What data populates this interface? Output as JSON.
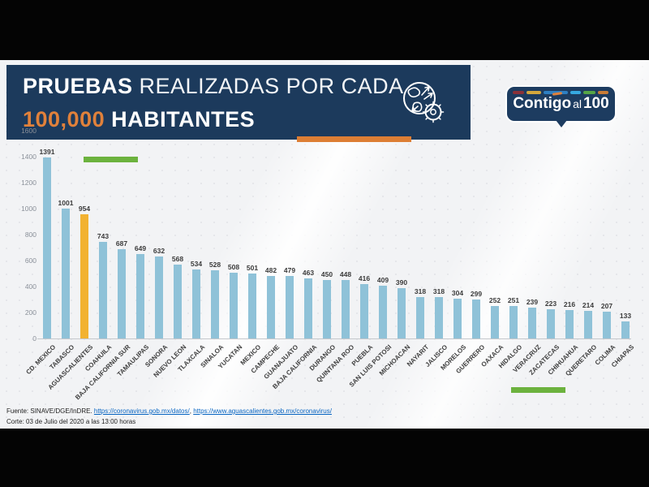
{
  "header": {
    "title_bold": "PRUEBAS",
    "title_rest": " REALIZADAS POR CADA",
    "title_highlight": "100,000",
    "title_end": " HABITANTES",
    "navy": "#1C3A5C"
  },
  "logo": {
    "word1": "Contigo",
    "word2": "al",
    "word3": "100",
    "stripes": [
      {
        "color": "#8B3138",
        "width": 14
      },
      {
        "color": "#D4A73C",
        "width": 18
      },
      {
        "color": "#2E7FC2",
        "width": 30
      },
      {
        "color": "#36A9E0",
        "width": 13
      },
      {
        "color": "#56A546",
        "width": 15
      },
      {
        "color": "#C97C36",
        "width": 13
      }
    ]
  },
  "accents": {
    "orange_underline": "#DD7E34",
    "green_bar": "#6CB23E"
  },
  "chart_data": {
    "type": "bar",
    "title": "PRUEBAS REALIZADAS POR CADA 100,000 HABITANTES",
    "categories": [
      "CD. MEXICO",
      "TABASCO",
      "AGUASCALIENTES",
      "COAHUILA",
      "BAJA CALIFORNIA SUR",
      "TAMAULIPAS",
      "SONORA",
      "NUEVO LEON",
      "TLAXCALA",
      "SINALOA",
      "YUCATAN",
      "MEXICO",
      "CAMPECHE",
      "GUANAJUATO",
      "BAJA CALIFORNIA",
      "DURANGO",
      "QUINTANA ROO",
      "PUEBLA",
      "SAN LUIS POTOSI",
      "MICHOACAN",
      "NAYARIT",
      "JALISCO",
      "MORELOS",
      "GUERRERO",
      "OAXACA",
      "HIDALGO",
      "VERACRUZ",
      "ZACATECAS",
      "CHIHUAHUA",
      "QUERETARO",
      "COLIMA",
      "CHIAPAS"
    ],
    "values": [
      1391,
      1001,
      954,
      743,
      687,
      649,
      632,
      568,
      534,
      528,
      508,
      501,
      482,
      479,
      463,
      450,
      448,
      416,
      409,
      390,
      318,
      318,
      304,
      299,
      252,
      251,
      239,
      223,
      216,
      214,
      207,
      133
    ],
    "highlight_index": 2,
    "highlight_category": "AGUASCALIENTES",
    "bar_color": "#8FC2D8",
    "highlight_color": "#F2B231",
    "y_ticks": [
      0,
      200,
      400,
      600,
      800,
      1000,
      1200,
      1400,
      1600
    ],
    "ylim": [
      0,
      1600
    ],
    "grid": false,
    "legend": false,
    "value_labels": true,
    "xlabel": "",
    "ylabel": ""
  },
  "footer": {
    "source_prefix": "Fuente: SINAVE/DGE/InDRE. ",
    "link1": "https://coronavirus.gob.mx/datos/",
    "separator": ", ",
    "link2": "https://www.aguascalientes.gob.mx/coronavirus/",
    "cutoff": "Corte: 03 de Julio del 2020 a las 13:00 horas"
  }
}
